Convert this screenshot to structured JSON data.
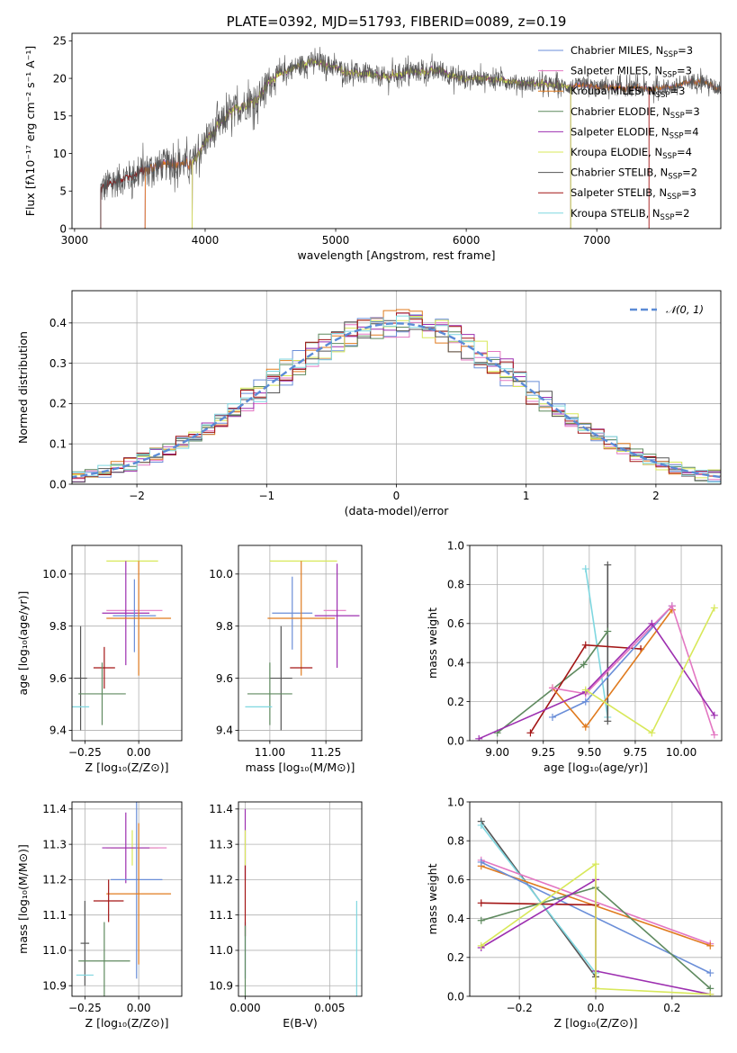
{
  "colors": {
    "Chabrier MILES": "#6a8ed8",
    "Salpeter MILES": "#e377c2",
    "Kroupa MILES": "#e07b1f",
    "Chabrier ELODIE": "#5f8a5f",
    "Salpeter ELODIE": "#9d2fb0",
    "Kroupa ELODIE": "#d8e85a",
    "Chabrier STELIB": "#555555",
    "Salpeter STELIB": "#a31515",
    "Kroupa STELIB": "#7fd7e0"
  },
  "chart_data": [
    {
      "id": "spectrum",
      "type": "line",
      "title": "PLATE=0392, MJD=51793, FIBERID=0089, z=0.19",
      "xlabel": "wavelength [Angstrom, rest frame]",
      "ylabel": "Flux [fλ10⁻¹⁷ erg cm⁻² s⁻¹ A⁻¹]",
      "xlim": [
        2980,
        7950
      ],
      "ylim": [
        0,
        26
      ],
      "xticks": [
        3000,
        4000,
        5000,
        6000,
        7000
      ],
      "yticks": [
        0,
        5,
        10,
        15,
        20,
        25
      ],
      "legend_position": "right",
      "legend": [
        {
          "model": "Chabrier MILES",
          "label": "Chabrier MILES, N",
          "sub": "SSP",
          "eq": "=3"
        },
        {
          "model": "Salpeter MILES",
          "label": "Salpeter MILES, N",
          "sub": "SSP",
          "eq": "=3"
        },
        {
          "model": "Kroupa MILES",
          "label": "Kroupa MILES, N",
          "sub": "SSP",
          "eq": "=3"
        },
        {
          "model": "Chabrier ELODIE",
          "label": "Chabrier ELODIE, N",
          "sub": "SSP",
          "eq": "=3"
        },
        {
          "model": "Salpeter ELODIE",
          "label": "Salpeter ELODIE, N",
          "sub": "SSP",
          "eq": "=4"
        },
        {
          "model": "Kroupa ELODIE",
          "label": "Kroupa ELODIE, N",
          "sub": "SSP",
          "eq": "=4"
        },
        {
          "model": "Chabrier STELIB",
          "label": "Chabrier STELIB, N",
          "sub": "SSP",
          "eq": "=2"
        },
        {
          "model": "Salpeter STELIB",
          "label": "Salpeter STELIB, N",
          "sub": "SSP",
          "eq": "=3"
        },
        {
          "model": "Kroupa STELIB",
          "label": "Kroupa STELIB, N",
          "sub": "SSP",
          "eq": "=2"
        }
      ],
      "continuum": {
        "x": [
          3200,
          3300,
          3500,
          3600,
          3800,
          3900,
          4000,
          4100,
          4200,
          4300,
          4400,
          4500,
          4600,
          4700,
          4800,
          4900,
          5000,
          5100,
          5200,
          5300,
          5400,
          5500,
          5600,
          5700,
          5800,
          5900,
          6000,
          6100,
          6200,
          6300,
          6400,
          6500,
          6600,
          6700,
          6800,
          6900,
          7000,
          7100,
          7200,
          7300,
          7400,
          7500,
          7600,
          7700,
          7800,
          7900
        ],
        "y": [
          5.2,
          6.2,
          7.5,
          8.2,
          8.8,
          8.5,
          11.5,
          13.5,
          15.5,
          16.5,
          17.2,
          19.8,
          20.8,
          21.6,
          22.2,
          22.0,
          21.4,
          20.8,
          20.6,
          20.3,
          20.2,
          20.7,
          20.9,
          20.9,
          21.1,
          20.3,
          19.9,
          20.1,
          19.9,
          19.7,
          19.4,
          19.3,
          19.2,
          19.0,
          18.9,
          19.0,
          18.8,
          18.9,
          18.6,
          18.7,
          18.5,
          18.8,
          18.9,
          19.5,
          19.8,
          18.8
        ]
      },
      "model_starts": {
        "Chabrier MILES": 3540,
        "Salpeter MILES": 3540,
        "Kroupa MILES": 3540,
        "Chabrier ELODIE": 3900,
        "Salpeter ELODIE": 3900,
        "Kroupa ELODIE": 3900,
        "Chabrier STELIB": 3200,
        "Salpeter STELIB": 3200,
        "Kroupa STELIB": 3200
      },
      "model_ends": {
        "Chabrier MILES": 7950,
        "Salpeter MILES": 7950,
        "Kroupa MILES": 7950,
        "Chabrier ELODIE": 6800,
        "Salpeter ELODIE": 6800,
        "Kroupa ELODIE": 6800,
        "Chabrier STELIB": 7950,
        "Salpeter STELIB": 7400,
        "Kroupa STELIB": 7950
      }
    },
    {
      "id": "residuals",
      "type": "histogram",
      "xlabel": "(data-model)/error",
      "ylabel": "Normed distribution",
      "xlim": [
        -2.5,
        2.5
      ],
      "ylim": [
        0,
        0.48
      ],
      "xticks": [
        -2,
        -1,
        0,
        1,
        2
      ],
      "xticklabels": [
        "−2",
        "−1",
        "0",
        "1",
        "2"
      ],
      "yticks": [
        0.0,
        0.1,
        0.2,
        0.3,
        0.4
      ],
      "yticklabels": [
        "0.0",
        "0.1",
        "0.2",
        "0.3",
        "0.4"
      ],
      "grid": true,
      "legend_position": "top-right",
      "legend_label": "𝒩(0, 1)",
      "bin_width": 0.1
    },
    {
      "id": "age_vs_Z",
      "type": "errorbar",
      "xlabel": "Z [log₁₀(Z/Z⊙)]",
      "ylabel": "age  [log₁₀(age/yr)]",
      "xlim": [
        -0.31,
        0.2
      ],
      "ylim": [
        9.36,
        10.11
      ],
      "xticks": [
        -0.25,
        0.0
      ],
      "xticklabels": [
        "−0.25",
        "0.00"
      ],
      "yticks": [
        9.4,
        9.6,
        9.8,
        10.0
      ],
      "yticklabels": [
        "9.4",
        "9.6",
        "9.8",
        "10.0"
      ],
      "grid": true,
      "points": [
        {
          "model": "Kroupa ELODIE",
          "x": -0.03,
          "xerr": 0.12,
          "y": 10.05,
          "yerr": 0.0
        },
        {
          "model": "Salpeter MILES",
          "x": -0.02,
          "xerr": 0.13,
          "y": 9.86,
          "yerr": 0.0
        },
        {
          "model": "Salpeter ELODIE",
          "x": -0.06,
          "xerr": 0.11,
          "y": 9.85,
          "yerr": 0.2
        },
        {
          "model": "Chabrier MILES",
          "x": -0.02,
          "xerr": 0.1,
          "y": 9.84,
          "yerr": 0.14
        },
        {
          "model": "Kroupa MILES",
          "x": 0.0,
          "xerr": 0.15,
          "y": 9.83,
          "yerr": 0.22
        },
        {
          "model": "Salpeter STELIB",
          "x": -0.16,
          "xerr": 0.05,
          "y": 9.64,
          "yerr": 0.08
        },
        {
          "model": "Chabrier STELIB",
          "x": -0.27,
          "xerr": 0.03,
          "y": 9.6,
          "yerr": 0.2
        },
        {
          "model": "Chabrier ELODIE",
          "x": -0.17,
          "xerr": 0.11,
          "y": 9.54,
          "yerr": 0.12
        },
        {
          "model": "Kroupa STELIB",
          "x": -0.27,
          "xerr": 0.04,
          "y": 9.49,
          "yerr": 0.0
        }
      ]
    },
    {
      "id": "age_vs_mass",
      "type": "errorbar",
      "xlabel": "mass [log₁₀(M/M⊙)]",
      "ylabel": "",
      "xlim": [
        10.86,
        11.41
      ],
      "ylim": [
        9.36,
        10.11
      ],
      "xticks": [
        11.0,
        11.25
      ],
      "xticklabels": [
        "11.00",
        "11.25"
      ],
      "yticks": [
        9.4,
        9.6,
        9.8,
        10.0
      ],
      "yticklabels": [
        "9.4",
        "9.6",
        "9.8",
        "10.0"
      ],
      "grid": true,
      "points": [
        {
          "model": "Kroupa ELODIE",
          "x": 11.15,
          "xerr": 0.15,
          "y": 10.05,
          "yerr": 0.0
        },
        {
          "model": "Salpeter MILES",
          "x": 11.29,
          "xerr": 0.05,
          "y": 9.86,
          "yerr": 0.0
        },
        {
          "model": "Salpeter ELODIE",
          "x": 11.3,
          "xerr": 0.1,
          "y": 9.84,
          "yerr": 0.2
        },
        {
          "model": "Chabrier MILES",
          "x": 11.1,
          "xerr": 0.09,
          "y": 9.85,
          "yerr": 0.14
        },
        {
          "model": "Kroupa MILES",
          "x": 11.14,
          "xerr": 0.15,
          "y": 9.83,
          "yerr": 0.22
        },
        {
          "model": "Salpeter STELIB",
          "x": 11.14,
          "xerr": 0.05,
          "y": 9.64,
          "yerr": 0.0
        },
        {
          "model": "Chabrier STELIB",
          "x": 11.05,
          "xerr": 0.05,
          "y": 9.6,
          "yerr": 0.2
        },
        {
          "model": "Chabrier ELODIE",
          "x": 11.0,
          "xerr": 0.1,
          "y": 9.54,
          "yerr": 0.12
        },
        {
          "model": "Kroupa STELIB",
          "x": 10.95,
          "xerr": 0.06,
          "y": 9.49,
          "yerr": 0.0
        }
      ]
    },
    {
      "id": "weight_vs_age",
      "type": "line",
      "xlabel": "age  [log₁₀(age/yr)]",
      "ylabel": "mass weight",
      "xlim": [
        8.85,
        10.22
      ],
      "ylim": [
        0,
        1.0
      ],
      "xticks": [
        9.0,
        9.25,
        9.5,
        9.75,
        10.0
      ],
      "xticklabels": [
        "9.00",
        "9.25",
        "9.50",
        "9.75",
        "10.00"
      ],
      "yticks": [
        0.0,
        0.2,
        0.4,
        0.6,
        0.8,
        1.0
      ],
      "yticklabels": [
        "0.0",
        "0.2",
        "0.4",
        "0.6",
        "0.8",
        "1.0"
      ],
      "grid": true,
      "series": [
        {
          "model": "Kroupa STELIB",
          "x": [
            9.48,
            9.6
          ],
          "y": [
            0.88,
            0.12
          ]
        },
        {
          "model": "Chabrier STELIB",
          "x": [
            9.6,
            9.6
          ],
          "y": [
            0.9,
            0.1
          ]
        },
        {
          "model": "Chabrier ELODIE",
          "x": [
            9.0,
            9.47,
            9.6
          ],
          "y": [
            0.04,
            0.39,
            0.56
          ]
        },
        {
          "model": "Salpeter STELIB",
          "x": [
            9.18,
            9.48,
            9.78
          ],
          "y": [
            0.04,
            0.49,
            0.47
          ]
        },
        {
          "model": "Chabrier MILES",
          "x": [
            9.3,
            9.48,
            9.95
          ],
          "y": [
            0.12,
            0.2,
            0.69
          ]
        },
        {
          "model": "Kroupa MILES",
          "x": [
            9.3,
            9.48,
            9.95
          ],
          "y": [
            0.27,
            0.07,
            0.67
          ]
        },
        {
          "model": "Salpeter MILES",
          "x": [
            9.3,
            9.48,
            9.95,
            10.18
          ],
          "y": [
            0.27,
            0.24,
            0.69,
            0.03
          ]
        },
        {
          "model": "Salpeter ELODIE",
          "x": [
            8.9,
            9.48,
            9.84,
            10.18
          ],
          "y": [
            0.01,
            0.25,
            0.6,
            0.13
          ]
        },
        {
          "model": "Kroupa ELODIE",
          "x": [
            9.48,
            9.84,
            10.18
          ],
          "y": [
            0.26,
            0.04,
            0.68
          ]
        }
      ]
    },
    {
      "id": "mass_vs_Z",
      "type": "errorbar",
      "xlabel": "Z [log₁₀(Z/Z⊙)]",
      "ylabel": "mass [log₁₀(M/M⊙)]",
      "xlim": [
        -0.31,
        0.2
      ],
      "ylim": [
        10.87,
        11.42
      ],
      "xticks": [
        -0.25,
        0.0
      ],
      "xticklabels": [
        "−0.25",
        "0.00"
      ],
      "yticks": [
        10.9,
        11.0,
        11.1,
        11.2,
        11.3,
        11.4
      ],
      "yticklabels": [
        "10.9",
        "11.0",
        "11.1",
        "11.2",
        "11.3",
        "11.4"
      ],
      "grid": true,
      "points": [
        {
          "model": "Kroupa ELODIE",
          "x": -0.03,
          "xerr": 0.12,
          "y": 11.29,
          "yerr": 0.05
        },
        {
          "model": "Salpeter MILES",
          "x": 0.0,
          "xerr": 0.13,
          "y": 11.29,
          "yerr": 0.0
        },
        {
          "model": "Salpeter ELODIE",
          "x": -0.06,
          "xerr": 0.11,
          "y": 11.29,
          "yerr": 0.1
        },
        {
          "model": "Chabrier MILES",
          "x": -0.01,
          "xerr": 0.12,
          "y": 11.2,
          "yerr": 0.28
        },
        {
          "model": "Kroupa MILES",
          "x": 0.0,
          "xerr": 0.15,
          "y": 11.16,
          "yerr": 0.2
        },
        {
          "model": "Salpeter STELIB",
          "x": -0.14,
          "xerr": 0.07,
          "y": 11.14,
          "yerr": 0.06
        },
        {
          "model": "Chabrier STELIB",
          "x": -0.25,
          "xerr": 0.02,
          "y": 11.02,
          "yerr": 0.12
        },
        {
          "model": "Chabrier ELODIE",
          "x": -0.16,
          "xerr": 0.12,
          "y": 10.97,
          "yerr": 0.11
        },
        {
          "model": "Kroupa STELIB",
          "x": -0.25,
          "xerr": 0.04,
          "y": 10.93,
          "yerr": 0.0
        }
      ]
    },
    {
      "id": "mass_vs_ebv",
      "type": "errorbar",
      "xlabel": "E(B-V)",
      "ylabel": "",
      "xlim": [
        -0.0004,
        0.0069
      ],
      "ylim": [
        10.87,
        11.42
      ],
      "xticks": [
        0.0,
        0.005
      ],
      "xticklabels": [
        "0.000",
        "0.005"
      ],
      "yticks": [
        10.9,
        11.0,
        11.1,
        11.2,
        11.3,
        11.4
      ],
      "yticklabels": [
        "10.9",
        "11.0",
        "11.1",
        "11.2",
        "11.3",
        "11.4"
      ],
      "grid": true,
      "points": [
        {
          "model": "Salpeter ELODIE",
          "x": 0.0,
          "xerr": 0.0,
          "y": 11.3,
          "yerr": 0.1
        },
        {
          "model": "Kroupa ELODIE",
          "x": 0.0,
          "xerr": 0.0,
          "y": 11.29,
          "yerr": 0.05
        },
        {
          "model": "Chabrier MILES",
          "x": 0.0,
          "xerr": 0.0,
          "y": 11.0,
          "yerr": 0.08
        },
        {
          "model": "Salpeter STELIB",
          "x": 0.0,
          "xerr": 0.0,
          "y": 11.14,
          "yerr": 0.1
        },
        {
          "model": "Chabrier ELODIE",
          "x": 0.0,
          "xerr": 0.0,
          "y": 10.97,
          "yerr": 0.1
        },
        {
          "model": "Kroupa STELIB",
          "x": 0.0066,
          "xerr": 0.0,
          "y": 11.0,
          "yerr": 0.14
        }
      ]
    },
    {
      "id": "weight_vs_Z",
      "type": "line",
      "xlabel": "Z [log₁₀(Z/Z⊙)]",
      "ylabel": "mass weight",
      "xlim": [
        -0.33,
        0.33
      ],
      "ylim": [
        0,
        1.0
      ],
      "xticks": [
        -0.2,
        0.0,
        0.2
      ],
      "xticklabels": [
        "−0.2",
        "0.0",
        "0.2"
      ],
      "yticks": [
        0.0,
        0.2,
        0.4,
        0.6,
        0.8,
        1.0
      ],
      "yticklabels": [
        "0.0",
        "0.2",
        "0.4",
        "0.6",
        "0.8",
        "1.0"
      ],
      "grid": true,
      "series": [
        {
          "model": "Chabrier STELIB",
          "x": [
            -0.3,
            0.0
          ],
          "y": [
            0.9,
            0.1
          ]
        },
        {
          "model": "Kroupa STELIB",
          "x": [
            -0.3,
            0.0
          ],
          "y": [
            0.88,
            0.12
          ]
        },
        {
          "model": "Salpeter MILES",
          "x": [
            -0.3,
            0.3
          ],
          "y": [
            0.7,
            0.27
          ]
        },
        {
          "model": "Kroupa MILES",
          "x": [
            -0.3,
            0.3
          ],
          "y": [
            0.67,
            0.26
          ]
        },
        {
          "model": "Chabrier MILES",
          "x": [
            -0.3,
            0.3
          ],
          "y": [
            0.69,
            0.12
          ]
        },
        {
          "model": "Salpeter STELIB",
          "x": [
            -0.3,
            0.0,
            0.0
          ],
          "y": [
            0.48,
            0.47,
            0.04
          ]
        },
        {
          "model": "Chabrier ELODIE",
          "x": [
            -0.3,
            0.0,
            0.3
          ],
          "y": [
            0.39,
            0.56,
            0.04
          ]
        },
        {
          "model": "Salpeter ELODIE",
          "x": [
            -0.3,
            0.0,
            0.0,
            0.3
          ],
          "y": [
            0.25,
            0.6,
            0.13,
            0.01
          ]
        },
        {
          "model": "Kroupa ELODIE",
          "x": [
            -0.3,
            0.0,
            0.0,
            0.3
          ],
          "y": [
            0.26,
            0.68,
            0.04,
            0.01
          ]
        }
      ]
    }
  ]
}
